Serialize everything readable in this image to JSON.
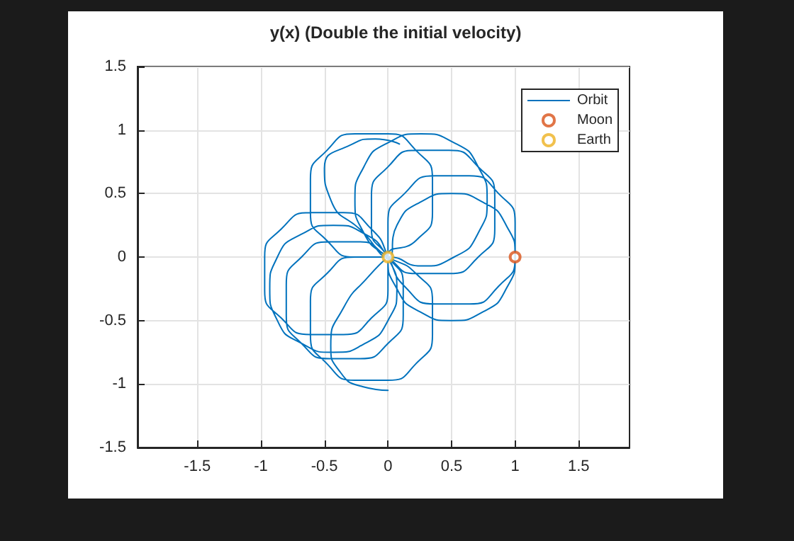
{
  "chart_data": {
    "type": "line",
    "title": "y(x) (Double the initial velocity)",
    "xlim": [
      -1.97,
      1.9
    ],
    "xticks": [
      -1.5,
      -1,
      -0.5,
      0,
      0.5,
      1,
      1.5
    ],
    "ylim": [
      -1.5,
      1.5
    ],
    "yticks": [
      -1.5,
      -1,
      -0.5,
      0,
      0.5,
      1,
      1.5
    ],
    "grid": true,
    "legend": "top right",
    "series": [
      {
        "name": "Orbit",
        "color": "#0072bd",
        "marker": "none",
        "x": [
          0,
          -0.2,
          -0.38,
          -0.45,
          -0.35,
          -0.15,
          0,
          -0.26,
          -0.48,
          -0.61,
          -0.61,
          -0.48,
          -0.26,
          0,
          0.22,
          0.35,
          0.35,
          0.22,
          0,
          -0.22,
          -0.46,
          -0.68,
          -0.8,
          -0.8,
          -0.68,
          -0.46,
          -0.22,
          0,
          0.12,
          0.12,
          0,
          -0.18,
          -0.43,
          -0.68,
          -0.87,
          -0.93,
          -0.87,
          -0.68,
          -0.43,
          -0.18,
          0,
          0.07,
          0,
          -0.13,
          -0.35,
          -0.61,
          -0.84,
          -0.97,
          -0.97,
          -0.84,
          -0.61,
          -0.35,
          -0.13,
          0,
          0,
          0.22,
          0.35,
          0.35,
          0.22,
          0,
          -0.26,
          -0.48,
          -0.61,
          -0.61,
          -0.48,
          -0.26,
          0,
          0.26,
          0.52,
          0.71,
          0.78,
          0.71,
          0.52,
          0.26,
          0,
          -0.19,
          -0.26,
          -0.19,
          0,
          0.22,
          0.48,
          0.71,
          0.84,
          0.84,
          0.71,
          0.48,
          0.22,
          0,
          -0.13,
          -0.13,
          0,
          0.13,
          0.37,
          0.64,
          0.87,
          1.0,
          1.0,
          0.87,
          0.64,
          0.37,
          0.13,
          0,
          0,
          0.07,
          0.25,
          0.5,
          0.75,
          0.93,
          1.0,
          0.93,
          0.75,
          0.5,
          0.25,
          0.07,
          0,
          -0.2,
          -0.45,
          -0.5,
          -0.3,
          -0.1,
          0.09
        ],
        "values": [
          -1.05,
          -1.02,
          -0.9,
          -0.7,
          -0.4,
          -0.15,
          0,
          0,
          -0.13,
          -0.35,
          -0.61,
          -0.84,
          -0.97,
          -0.97,
          -0.84,
          -0.61,
          -0.35,
          -0.13,
          0,
          0.12,
          0.12,
          0,
          -0.22,
          -0.46,
          -0.68,
          -0.8,
          -0.8,
          -0.68,
          -0.46,
          -0.22,
          0,
          0.18,
          0.25,
          0.18,
          0,
          -0.25,
          -0.5,
          -0.68,
          -0.75,
          -0.68,
          -0.5,
          -0.25,
          0,
          0.22,
          0.35,
          0.35,
          0.22,
          0,
          -0.26,
          -0.48,
          -0.61,
          -0.61,
          -0.48,
          -0.26,
          0,
          0.13,
          0.35,
          0.61,
          0.84,
          0.97,
          0.97,
          0.84,
          0.61,
          0.35,
          0.13,
          0,
          0,
          -0.07,
          0,
          0.19,
          0.45,
          0.71,
          0.9,
          0.97,
          0.9,
          0.71,
          0.45,
          0.19,
          0,
          -0.13,
          -0.13,
          0,
          0.22,
          0.48,
          0.71,
          0.84,
          0.84,
          0.71,
          0.48,
          0.22,
          0,
          -0.23,
          -0.37,
          -0.37,
          -0.23,
          0,
          0.27,
          0.5,
          0.64,
          0.64,
          0.5,
          0.27,
          0,
          -0.25,
          -0.43,
          -0.5,
          -0.43,
          -0.25,
          0,
          0.25,
          0.43,
          0.5,
          0.43,
          0.25,
          0,
          0.2,
          0.45,
          0.7,
          0.88,
          0.93,
          0.89
        ]
      },
      {
        "name": "Moon",
        "type": "scatter",
        "color": "#d95319",
        "marker": "circle",
        "x": [
          1
        ],
        "values": [
          0
        ]
      },
      {
        "name": "Earth",
        "type": "scatter",
        "color": "#edb120",
        "marker": "circle",
        "x": [
          0
        ],
        "values": [
          0
        ]
      }
    ]
  }
}
